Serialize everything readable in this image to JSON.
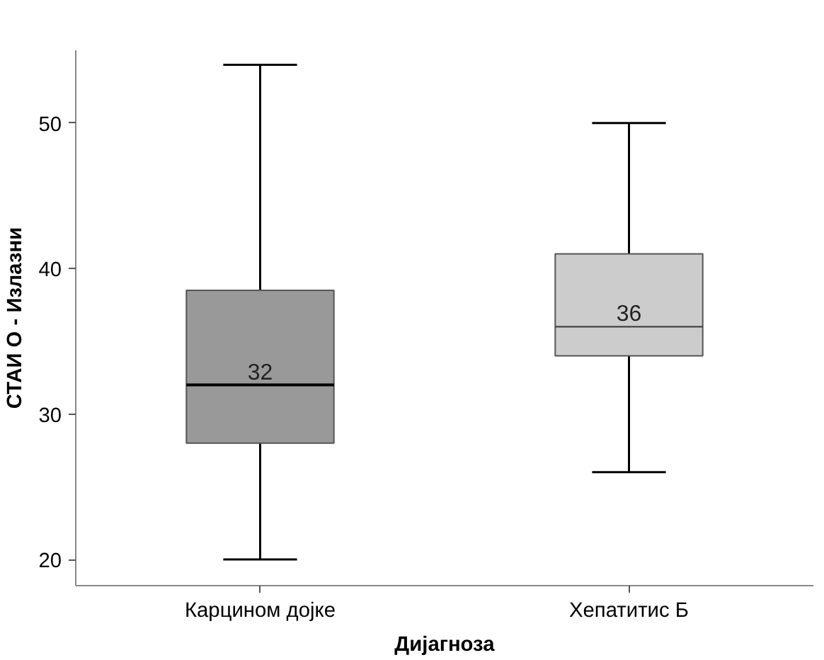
{
  "chart_data": {
    "type": "box",
    "xlabel": "Дијагноза",
    "ylabel": "СТАИ О - Излазни",
    "categories": [
      "Карцином дојке",
      "Хепатитис Б"
    ],
    "boxes": [
      {
        "low": 20,
        "q1": 28,
        "median": 32,
        "q3": 38.5,
        "high": 54
      },
      {
        "low": 26,
        "q1": 34,
        "median": 36,
        "q3": 41,
        "high": 50
      }
    ],
    "colors": [
      "#999999",
      "#cccccc"
    ],
    "annotations": [
      {
        "text": "32",
        "x": "Карцином дојке",
        "y": 32
      },
      {
        "text": "36",
        "x": "Хепатитис Б",
        "y": 36
      }
    ],
    "ylim": [
      18.2,
      55
    ],
    "yticks": [
      20,
      30,
      40,
      50
    ],
    "grid": false
  }
}
